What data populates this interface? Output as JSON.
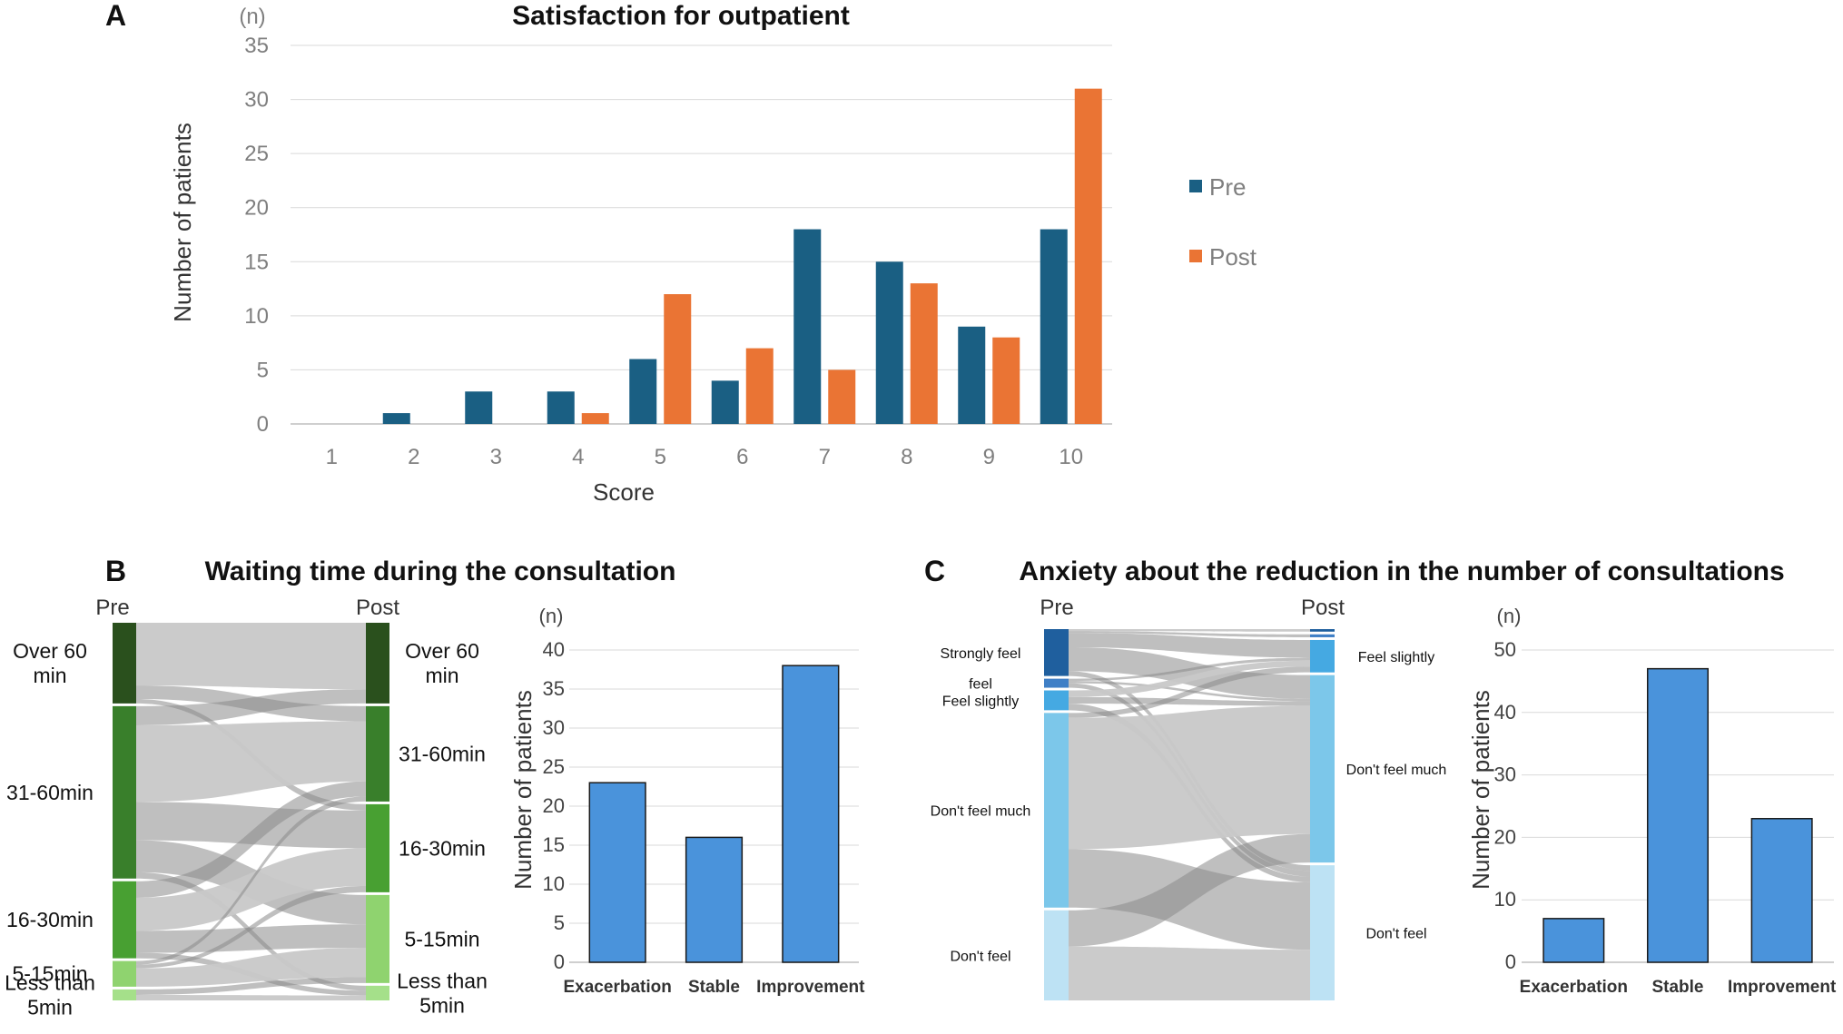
{
  "panels": {
    "a": {
      "letter": "A"
    },
    "b": {
      "letter": "B"
    },
    "c": {
      "letter": "C"
    }
  },
  "colors": {
    "pre": "#1a5f83",
    "post": "#ea7434",
    "bar_blue": "#4a93db",
    "grid": "#d9d9d9",
    "flow": "#bdbdbd"
  },
  "chart_data": [
    {
      "id": "A",
      "type": "bar",
      "title": "Satisfaction for outpatient",
      "unit": "(n)",
      "xlabel": "Score",
      "ylabel": "Number of patients",
      "categories": [
        "1",
        "2",
        "3",
        "4",
        "5",
        "6",
        "7",
        "8",
        "9",
        "10"
      ],
      "series": [
        {
          "name": "Pre",
          "color": "#1a5f83",
          "values": [
            0,
            1,
            3,
            3,
            6,
            4,
            18,
            15,
            9,
            18
          ]
        },
        {
          "name": "Post",
          "color": "#ea7434",
          "values": [
            0,
            0,
            0,
            1,
            12,
            7,
            5,
            13,
            8,
            31
          ]
        }
      ],
      "yticks": [
        0,
        5,
        10,
        15,
        20,
        25,
        30,
        35
      ],
      "ylim": [
        0,
        35
      ],
      "grid": true,
      "legend": "right"
    },
    {
      "id": "B-sankey",
      "type": "sankey",
      "title": "Waiting time during the consultation",
      "left_header": "Pre",
      "right_header": "Post",
      "left_nodes": [
        {
          "label": "Over 60 min",
          "color": "#2a501d",
          "share": 0.22
        },
        {
          "label": "31-60min",
          "color": "#397f2b",
          "share": 0.47
        },
        {
          "label": "16-30min",
          "color": "#48a032",
          "share": 0.21
        },
        {
          "label": "5-15min",
          "color": "#8fd36f",
          "share": 0.07
        },
        {
          "label": "Less than 5min",
          "color": "#a5e08a",
          "share": 0.03
        }
      ],
      "right_nodes": [
        {
          "label": "Over 60 min",
          "color": "#2a501d",
          "share": 0.22
        },
        {
          "label": "31-60min",
          "color": "#397f2b",
          "share": 0.26
        },
        {
          "label": "16-30min",
          "color": "#48a032",
          "share": 0.24
        },
        {
          "label": "5-15min",
          "color": "#8fd36f",
          "share": 0.24
        },
        {
          "label": "Less than 5min",
          "color": "#a5e08a",
          "share": 0.04
        }
      ]
    },
    {
      "id": "B-bar",
      "type": "bar",
      "unit": "(n)",
      "ylabel": "Number of patients",
      "categories": [
        "Exacerbation",
        "Stable",
        "Improvement"
      ],
      "values": [
        23,
        16,
        38
      ],
      "yticks": [
        0,
        5,
        10,
        15,
        20,
        25,
        30,
        35,
        40
      ],
      "ylim": [
        0,
        40
      ],
      "color": "#4a93db",
      "grid": true
    },
    {
      "id": "C-sankey",
      "type": "sankey",
      "title": "Anxiety about the reduction in the number of consultations",
      "left_header": "Pre",
      "right_header": "Post",
      "left_nodes": [
        {
          "label": "Strongly feel",
          "color": "#1f5f9e",
          "share": 0.13
        },
        {
          "label": "feel",
          "color": "#3f7fc6",
          "share": 0.025
        },
        {
          "label": "Feel slightly",
          "color": "#45a9e2",
          "share": 0.055
        },
        {
          "label": "Don't feel much",
          "color": "#7cc7ea",
          "share": 0.54
        },
        {
          "label": "Don't feel",
          "color": "#bde2f4",
          "share": 0.25
        }
      ],
      "right_nodes": [
        {
          "label": "",
          "color": "#1f5f9e",
          "share": 0.007
        },
        {
          "label": "",
          "color": "#3f7fc6",
          "share": 0.008
        },
        {
          "label": "Feel slightly",
          "color": "#45a9e2",
          "share": 0.09
        },
        {
          "label": "Don't feel much",
          "color": "#7cc7ea",
          "share": 0.52
        },
        {
          "label": "Don't feel",
          "color": "#bde2f4",
          "share": 0.375
        }
      ]
    },
    {
      "id": "C-bar",
      "type": "bar",
      "unit": "(n)",
      "ylabel": "Number of patients",
      "categories": [
        "Exacerbation",
        "Stable",
        "Improvement"
      ],
      "values": [
        7,
        47,
        23
      ],
      "yticks": [
        0,
        10,
        20,
        30,
        40,
        50
      ],
      "ylim": [
        0,
        50
      ],
      "color": "#4a93db",
      "grid": true
    }
  ]
}
